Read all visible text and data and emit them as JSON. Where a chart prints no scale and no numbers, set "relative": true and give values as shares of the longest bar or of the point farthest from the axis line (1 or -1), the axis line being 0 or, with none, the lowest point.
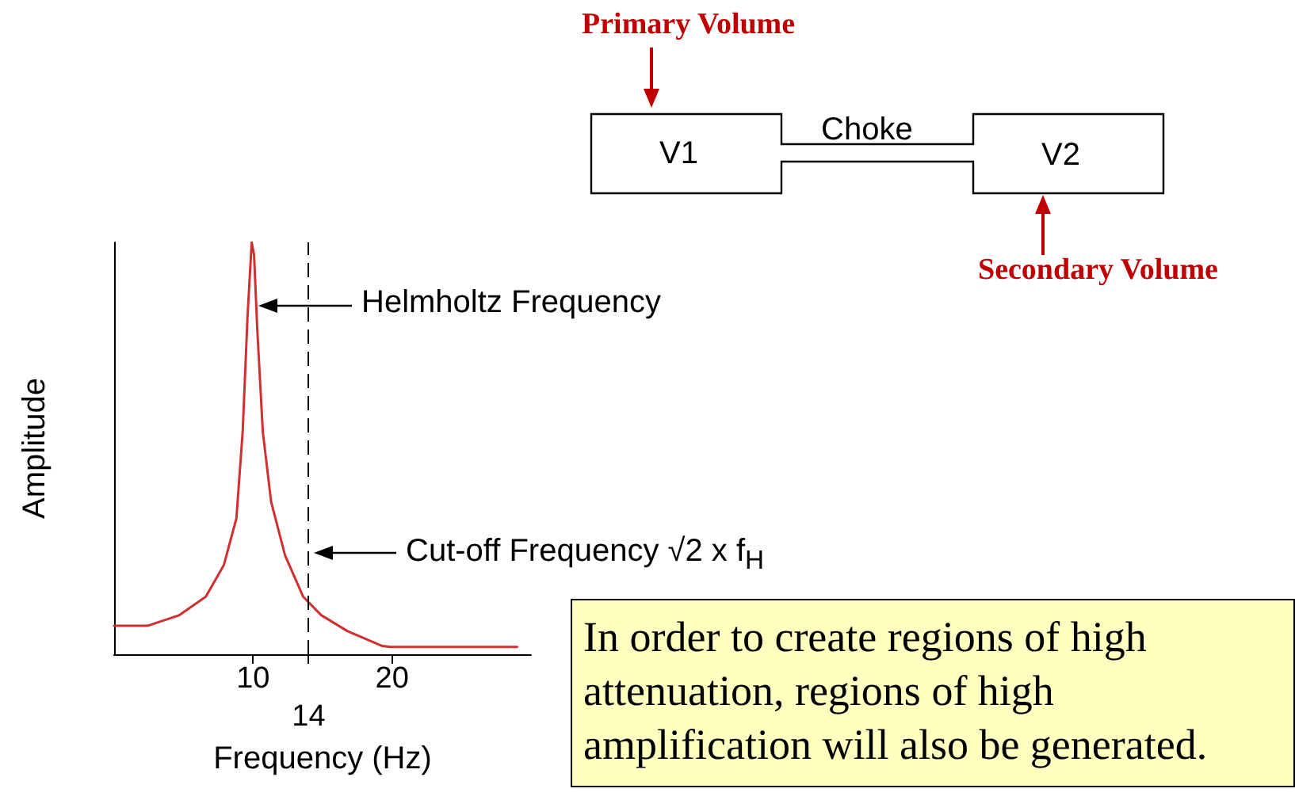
{
  "chart_data": {
    "type": "line",
    "relative": true,
    "xlabel": "Frequency (Hz)",
    "ylabel": "Amplitude",
    "x": [
      0,
      2.4,
      4.7,
      6.6,
      7.9,
      8.8,
      9.25,
      9.6,
      9.9,
      10.07,
      10.3,
      10.7,
      11.3,
      12.3,
      13.6,
      14.9,
      16.8,
      19.3,
      19.9,
      29
    ],
    "series": [
      {
        "color": "#d03030",
        "values": [
          0.069,
          0.069,
          0.095,
          0.14,
          0.217,
          0.33,
          0.54,
          0.82,
          1,
          0.97,
          0.79,
          0.54,
          0.37,
          0.24,
          0.14,
          0.095,
          0.056,
          0.02,
          0.018,
          0.018
        ]
      }
    ],
    "xlim": [
      0,
      30
    ],
    "xticks": [
      10,
      {
        "value": 14,
        "label": null
      },
      20
    ],
    "ref_lines": [
      {
        "axis": "x",
        "value": 14,
        "label": "14",
        "line_style": "dashed",
        "color": "#000000"
      }
    ],
    "grid": false,
    "marker": "none",
    "line_style": "solid",
    "annotations": [
      "Primary Volume",
      "V1",
      "Choke",
      "V2",
      "Secondary Volume",
      "In order to create regions of high attenuation, regions of high amplification will also be generated.",
      "Helmholtz Frequency",
      "Cut-off Frequency √2 x f$_{H}$"
    ]
  }
}
